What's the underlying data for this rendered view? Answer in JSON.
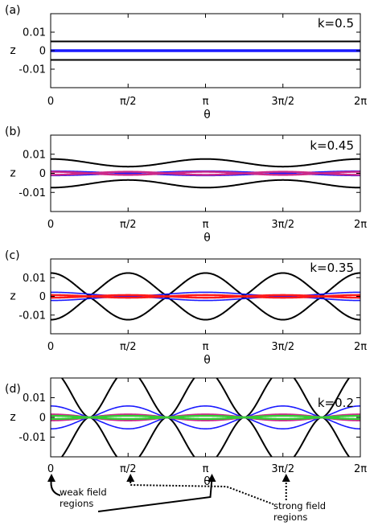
{
  "colors": {
    "black": "#000000",
    "blue": "#1a1aff",
    "red": "#ff1a1a",
    "magenta": "#cc2a8a",
    "green": "#33cc33"
  },
  "chart_data": [
    {
      "type": "line",
      "panel_label": "(a)",
      "k_label": "k=0.5",
      "xlabel": "θ",
      "ylabel": "z",
      "xlim": [
        0,
        6.2832
      ],
      "ylim": [
        -0.02,
        0.02
      ],
      "xticks": [
        0,
        1.5708,
        3.1416,
        4.7124,
        6.2832
      ],
      "xtick_labels": [
        "0",
        "π/2",
        "π",
        "3π/2",
        "2π"
      ],
      "yticks": [
        0.01,
        0,
        -0.01
      ],
      "ytick_labels": [
        "0.01",
        "0",
        "-0.01"
      ],
      "series": [
        {
          "color": "black",
          "kind": "flat",
          "amp": 0.005
        },
        {
          "color": "blue",
          "kind": "flat",
          "amp": 0.0004
        },
        {
          "color": "blue",
          "kind": "flat",
          "amp": 0.0002
        }
      ]
    },
    {
      "type": "line",
      "panel_label": "(b)",
      "k_label": "k=0.45",
      "xlabel": "θ",
      "ylabel": "z",
      "xlim": [
        0,
        6.2832
      ],
      "ylim": [
        -0.02,
        0.02
      ],
      "xticks": [
        0,
        1.5708,
        3.1416,
        4.7124,
        6.2832
      ],
      "xtick_labels": [
        "0",
        "π/2",
        "π",
        "3π/2",
        "2π"
      ],
      "yticks": [
        0.01,
        0,
        -0.01
      ],
      "ytick_labels": [
        "0.01",
        "0",
        "-0.01"
      ],
      "series": [
        {
          "color": "black",
          "kind": "wave",
          "min": 0.0035,
          "max": 0.0075
        },
        {
          "color": "blue",
          "kind": "wave",
          "min": 0.0003,
          "max": 0.0012
        },
        {
          "color": "magenta",
          "kind": "lens",
          "amp": 0.0008
        }
      ]
    },
    {
      "type": "line",
      "panel_label": "(c)",
      "k_label": "k=0.35",
      "xlabel": "θ",
      "ylabel": "z",
      "xlim": [
        0,
        6.2832
      ],
      "ylim": [
        -0.02,
        0.02
      ],
      "xticks": [
        0,
        1.5708,
        3.1416,
        4.7124,
        6.2832
      ],
      "xtick_labels": [
        "0",
        "π/2",
        "π",
        "3π/2",
        "2π"
      ],
      "yticks": [
        0.01,
        0,
        -0.01
      ],
      "ytick_labels": [
        "0.01",
        "0",
        "-0.01"
      ],
      "series": [
        {
          "color": "black",
          "kind": "cusp",
          "min": 0.0005,
          "max": 0.0125
        },
        {
          "color": "blue",
          "kind": "wave",
          "min": 0.0002,
          "max": 0.0022
        },
        {
          "color": "red",
          "kind": "lens",
          "amp": 0.0007
        }
      ]
    },
    {
      "type": "line",
      "panel_label": "(d)",
      "k_label": "k=0.2",
      "xlabel": "θ",
      "ylabel": "z",
      "xlim": [
        0,
        6.2832
      ],
      "ylim": [
        -0.02,
        0.02
      ],
      "xticks": [
        0,
        1.5708,
        3.1416,
        4.7124,
        6.2832
      ],
      "xtick_labels": [
        "0",
        "π/2",
        "π",
        "3π/2",
        "2π"
      ],
      "yticks": [
        0.01,
        0,
        -0.01
      ],
      "ytick_labels": [
        "0.01",
        "0",
        "-0.01"
      ],
      "series": [
        {
          "color": "black",
          "kind": "spike",
          "min": 0.0,
          "max": 0.024
        },
        {
          "color": "blue",
          "kind": "cusp",
          "min": 0.0,
          "max": 0.0058
        },
        {
          "color": "magenta",
          "kind": "lens",
          "amp": 0.0015
        },
        {
          "color": "green",
          "kind": "lens",
          "amp": 0.0008
        }
      ],
      "annotations": {
        "weak": "weak field\nregions",
        "strong": "strong field\nregions"
      }
    }
  ]
}
